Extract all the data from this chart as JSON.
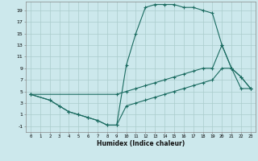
{
  "xlabel": "Humidex (Indice chaleur)",
  "bg_color": "#cce8ec",
  "grid_color": "#aacccc",
  "line_color": "#1a6b60",
  "xlim": [
    -0.5,
    23.5
  ],
  "ylim": [
    -2.0,
    20.5
  ],
  "xticks": [
    0,
    1,
    2,
    3,
    4,
    5,
    6,
    7,
    8,
    9,
    10,
    11,
    12,
    13,
    14,
    15,
    16,
    17,
    18,
    19,
    20,
    21,
    22,
    23
  ],
  "yticks": [
    -1,
    1,
    3,
    5,
    7,
    9,
    11,
    13,
    15,
    17,
    19
  ],
  "series1_x": [
    0,
    2,
    3,
    4,
    5,
    6,
    7,
    8,
    9,
    10,
    11,
    12,
    13,
    14,
    15,
    16,
    17,
    18,
    19,
    20,
    21,
    22,
    23
  ],
  "series1_y": [
    4.5,
    3.5,
    2.5,
    1.5,
    1.0,
    0.5,
    0.0,
    -0.8,
    -0.8,
    9.5,
    15.0,
    19.5,
    20.0,
    20.0,
    20.0,
    19.5,
    19.5,
    19.0,
    18.5,
    13.0,
    9.0,
    7.5,
    5.5
  ],
  "series2_x": [
    0,
    2,
    3,
    4,
    5,
    6,
    7,
    8,
    9,
    10,
    11,
    12,
    13,
    14,
    15,
    16,
    17,
    18,
    19,
    20,
    21,
    22,
    23
  ],
  "series2_y": [
    4.5,
    3.5,
    2.5,
    1.5,
    1.0,
    0.5,
    0.0,
    -0.8,
    -0.8,
    2.5,
    3.0,
    3.5,
    4.0,
    4.5,
    5.0,
    5.5,
    6.0,
    6.5,
    7.0,
    9.0,
    9.0,
    5.5,
    5.5
  ],
  "series3_x": [
    0,
    9,
    10,
    11,
    12,
    13,
    14,
    15,
    16,
    17,
    18,
    19,
    20,
    21,
    22,
    23
  ],
  "series3_y": [
    4.5,
    4.5,
    5.0,
    5.5,
    6.0,
    6.5,
    7.0,
    7.5,
    8.0,
    8.5,
    9.0,
    9.0,
    13.0,
    9.0,
    7.5,
    5.5
  ]
}
